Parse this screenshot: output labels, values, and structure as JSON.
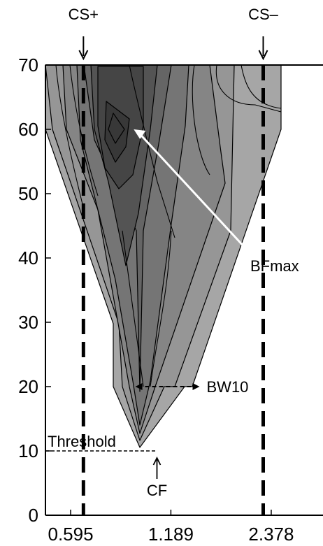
{
  "chart_data": {
    "type": "contour",
    "title": "",
    "xlabel": "",
    "ylabel": "",
    "x_scale": "log2",
    "xlim": [
      0.5,
      3.4
    ],
    "ylim": [
      0,
      70
    ],
    "x_ticks": [
      {
        "value": 0.595,
        "label": "0.595"
      },
      {
        "value": 1.189,
        "label": "1.189"
      },
      {
        "value": 2.378,
        "label": "2.378"
      }
    ],
    "y_ticks": [
      {
        "value": 0,
        "label": "0"
      },
      {
        "value": 10,
        "label": "10"
      },
      {
        "value": 20,
        "label": "20"
      },
      {
        "value": 30,
        "label": "30"
      },
      {
        "value": 40,
        "label": "40"
      },
      {
        "value": 50,
        "label": "50"
      },
      {
        "value": 60,
        "label": "60"
      },
      {
        "value": 70,
        "label": "70"
      }
    ],
    "stimulus_markers": [
      {
        "label": "CS+",
        "x": 0.65
      },
      {
        "label": "CS–",
        "x": 2.25
      }
    ],
    "annotations": {
      "threshold": {
        "label": "Threshold",
        "y": 10,
        "x_end": 1.08
      },
      "cf": {
        "label": "CF",
        "x": 1.08,
        "y": 10
      },
      "bw10": {
        "label": "BW10",
        "y": 20,
        "x_from": 0.93,
        "x_to": 1.45
      },
      "bfmax": {
        "label": "BFmax",
        "x": 0.92,
        "y": 60
      }
    },
    "grid": false,
    "colors": {
      "fill_levels": [
        "#a6a6a6",
        "#969696",
        "#858585",
        "#757575",
        "#656565",
        "#545454",
        "#454545",
        "#383838"
      ],
      "contour_line": "#000000",
      "bfmax_arrow": "#ffffff"
    }
  }
}
